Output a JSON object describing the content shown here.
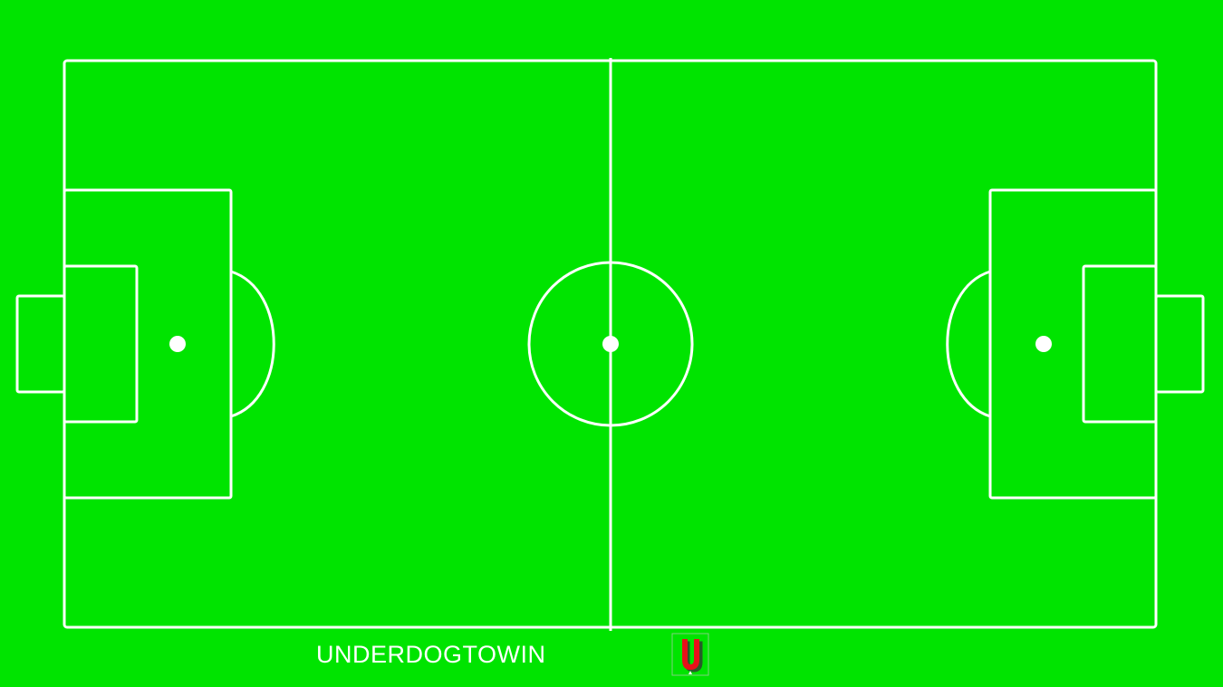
{
  "brand": {
    "name": "UNDERDOGTOWIN",
    "logo_letter": "U",
    "logo_icon": "underdogtowin-u-logo-icon"
  },
  "colors": {
    "pitch": "#00e400",
    "lines": "#ffffff",
    "logo_red": "#e8101a",
    "logo_dark": "#2a5a2a"
  }
}
